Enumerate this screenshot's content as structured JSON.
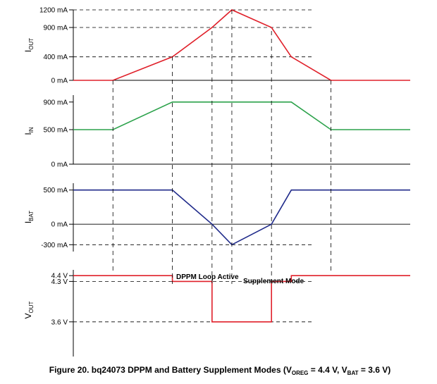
{
  "chart_data": {
    "type": "line",
    "caption": {
      "prefix": "Figure 20.  bq24073 DPPM and Battery Supplement Modes (V",
      "sub1": "OREG",
      "mid": " = 4.4 V, V",
      "sub2": "BAT",
      "suffix": " = 3.6 V)"
    },
    "x": [
      0,
      2,
      5,
      7,
      8,
      10,
      11,
      13,
      17
    ],
    "annotations": [
      {
        "text": "DPPM Loop Active"
      },
      {
        "text": "Supplement Mode"
      }
    ],
    "panels": [
      {
        "name": "iout",
        "ylabel_main": "I",
        "ylabel_sub": "OUT",
        "color": "#e0202a",
        "ylim": [
          0,
          1200
        ],
        "ticks": [
          {
            "v": 1200,
            "label": "1200 mA"
          },
          {
            "v": 900,
            "label": "900 mA"
          },
          {
            "v": 400,
            "label": "400 mA"
          },
          {
            "v": 0,
            "label": "0 mA"
          }
        ],
        "guides": [
          1200,
          900,
          400
        ],
        "values": [
          0,
          0,
          400,
          900,
          1200,
          900,
          400,
          0,
          0
        ]
      },
      {
        "name": "iin",
        "ylabel_main": "I",
        "ylabel_sub": "IN",
        "color": "#2ca24b",
        "ylim": [
          0,
          1000
        ],
        "ticks": [
          {
            "v": 900,
            "label": "900 mA"
          },
          {
            "v": 500,
            "label": "500 mA"
          },
          {
            "v": 0,
            "label": "0 mA"
          }
        ],
        "guides": [],
        "values": [
          500,
          500,
          900,
          900,
          900,
          900,
          900,
          500,
          500
        ]
      },
      {
        "name": "ibat",
        "ylabel_main": "I",
        "ylabel_sub": "BAT",
        "color": "#1f2a8a",
        "ylim": [
          -400,
          600
        ],
        "ticks": [
          {
            "v": 500,
            "label": "500 mA"
          },
          {
            "v": 0,
            "label": "0 mA"
          },
          {
            "v": -300,
            "label": "-300 mA"
          }
        ],
        "guides": [
          0,
          -300
        ],
        "values": [
          500,
          500,
          500,
          0,
          -300,
          0,
          500,
          500,
          500
        ]
      },
      {
        "name": "vout",
        "ylabel_main": "V",
        "ylabel_sub": "OUT",
        "color": "#e0202a",
        "ylim": [
          3.0,
          4.5
        ],
        "ticks": [
          {
            "v": 4.4,
            "label": "4.4 V"
          },
          {
            "v": 4.3,
            "label": "4.3 V"
          },
          {
            "v": 3.6,
            "label": "3.6 V"
          }
        ],
        "guides": [
          4.3,
          3.6
        ],
        "step": [
          [
            0,
            4.4
          ],
          [
            5,
            4.4
          ],
          [
            5,
            4.3
          ],
          [
            7,
            4.3
          ],
          [
            7,
            3.6
          ],
          [
            10,
            3.6
          ],
          [
            10,
            4.3
          ],
          [
            11,
            4.3
          ],
          [
            11,
            4.4
          ],
          [
            17,
            4.4
          ]
        ]
      }
    ]
  }
}
